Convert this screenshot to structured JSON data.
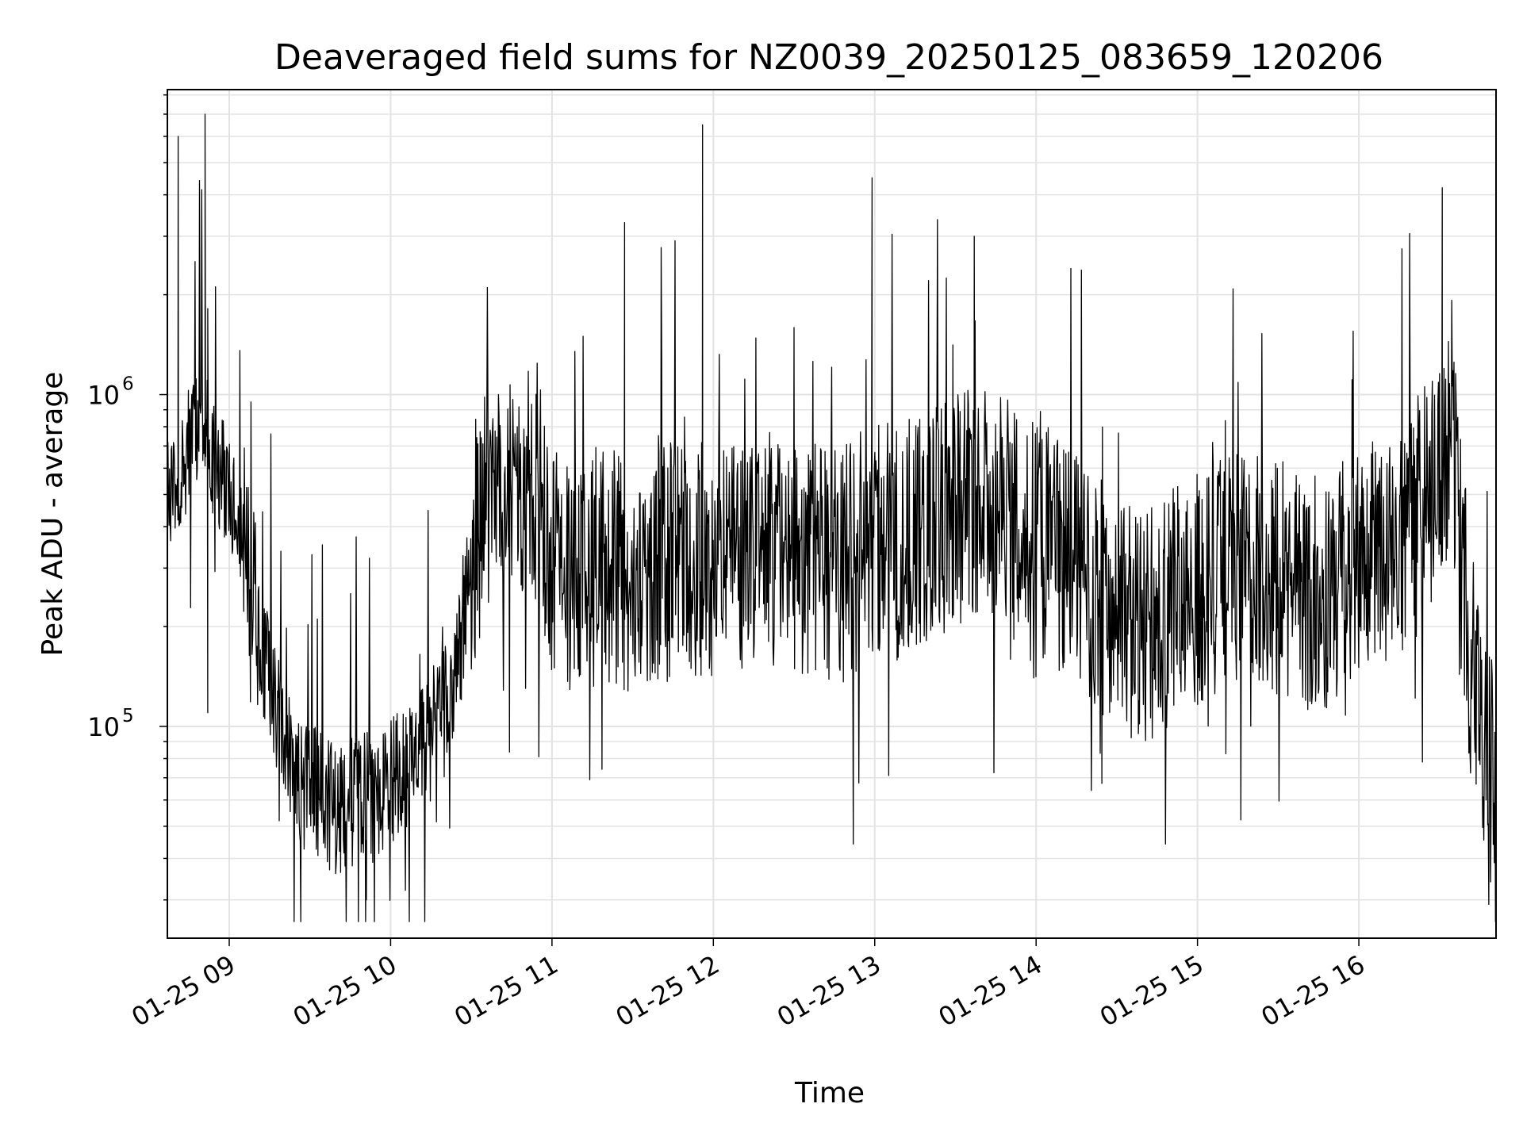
{
  "chart_data": {
    "type": "line",
    "title": "Deaveraged field sums for NZ0039_20250125_083659_120206",
    "xlabel": "Time",
    "ylabel": "Peak ADU - average",
    "xlim": [
      "2025-01-25 08:37",
      "2025-01-25 16:51"
    ],
    "ylim": [
      23000,
      8300000
    ],
    "yscale": "log",
    "grid": true,
    "line_color": "#000000",
    "x_ticks": [
      "01-25 09",
      "01-25 10",
      "01-25 11",
      "01-25 12",
      "01-25 13",
      "01-25 14",
      "01-25 15",
      "01-25 16"
    ],
    "y_ticks": [
      {
        "base": "10",
        "exp": "5",
        "value": 100000
      },
      {
        "base": "10",
        "exp": "6",
        "value": 1000000
      }
    ],
    "series": [
      {
        "x": [
          "2025-01-25 08:37",
          "2025-01-25 08:40",
          "2025-01-25 08:45",
          "2025-01-25 08:50",
          "2025-01-25 08:55",
          "2025-01-25 09:00",
          "2025-01-25 09:05",
          "2025-01-25 09:10",
          "2025-01-25 09:15",
          "2025-01-25 09:20",
          "2025-01-25 09:25",
          "2025-01-25 09:30",
          "2025-01-25 09:35",
          "2025-01-25 09:40",
          "2025-01-25 09:45",
          "2025-01-25 09:50",
          "2025-01-25 09:55",
          "2025-01-25 10:00",
          "2025-01-25 10:05",
          "2025-01-25 10:10",
          "2025-01-25 10:15",
          "2025-01-25 10:20",
          "2025-01-25 10:25",
          "2025-01-25 10:30",
          "2025-01-25 10:35",
          "2025-01-25 10:40",
          "2025-01-25 10:45",
          "2025-01-25 10:50",
          "2025-01-25 10:55",
          "2025-01-25 11:00",
          "2025-01-25 11:10",
          "2025-01-25 11:20",
          "2025-01-25 11:30",
          "2025-01-25 11:40",
          "2025-01-25 11:50",
          "2025-01-25 12:00",
          "2025-01-25 12:10",
          "2025-01-25 12:20",
          "2025-01-25 12:30",
          "2025-01-25 12:40",
          "2025-01-25 12:50",
          "2025-01-25 13:00",
          "2025-01-25 13:10",
          "2025-01-25 13:20",
          "2025-01-25 13:30",
          "2025-01-25 13:40",
          "2025-01-25 13:50",
          "2025-01-25 14:00",
          "2025-01-25 14:10",
          "2025-01-25 14:20",
          "2025-01-25 14:30",
          "2025-01-25 14:40",
          "2025-01-25 14:50",
          "2025-01-25 15:00",
          "2025-01-25 15:10",
          "2025-01-25 15:20",
          "2025-01-25 15:30",
          "2025-01-25 15:40",
          "2025-01-25 15:50",
          "2025-01-25 16:00",
          "2025-01-25 16:10",
          "2025-01-25 16:20",
          "2025-01-25 16:30",
          "2025-01-25 16:35",
          "2025-01-25 16:40",
          "2025-01-25 16:45",
          "2025-01-25 16:51"
        ],
        "values": [
          450000,
          520000,
          700000,
          850000,
          600000,
          520000,
          350000,
          180000,
          140000,
          90000,
          70000,
          65000,
          60000,
          55000,
          58000,
          62000,
          60000,
          70000,
          75000,
          80000,
          95000,
          110000,
          150000,
          350000,
          450000,
          500000,
          480000,
          520000,
          550000,
          300000,
          280000,
          320000,
          260000,
          300000,
          340000,
          300000,
          320000,
          350000,
          330000,
          300000,
          310000,
          380000,
          350000,
          420000,
          450000,
          480000,
          420000,
          380000,
          320000,
          260000,
          220000,
          200000,
          230000,
          260000,
          300000,
          330000,
          280000,
          250000,
          260000,
          300000,
          330000,
          400000,
          600000,
          650000,
          220000,
          90000,
          85000
        ],
        "spikes": [
          {
            "x": "2025-01-25 08:41",
            "value": 6000000
          },
          {
            "x": "2025-01-25 08:51",
            "value": 7000000
          },
          {
            "x": "2025-01-25 08:52",
            "value": 110000
          },
          {
            "x": "2025-01-25 09:51",
            "value": 30000
          },
          {
            "x": "2025-01-25 11:27",
            "value": 3300000
          },
          {
            "x": "2025-01-25 11:56",
            "value": 6500000
          },
          {
            "x": "2025-01-25 12:59",
            "value": 4500000
          },
          {
            "x": "2025-01-25 13:37",
            "value": 3000000
          },
          {
            "x": "2025-01-25 16:31",
            "value": 4200000
          },
          {
            "x": "2025-01-25 16:49",
            "value": 34000
          }
        ]
      }
    ]
  }
}
